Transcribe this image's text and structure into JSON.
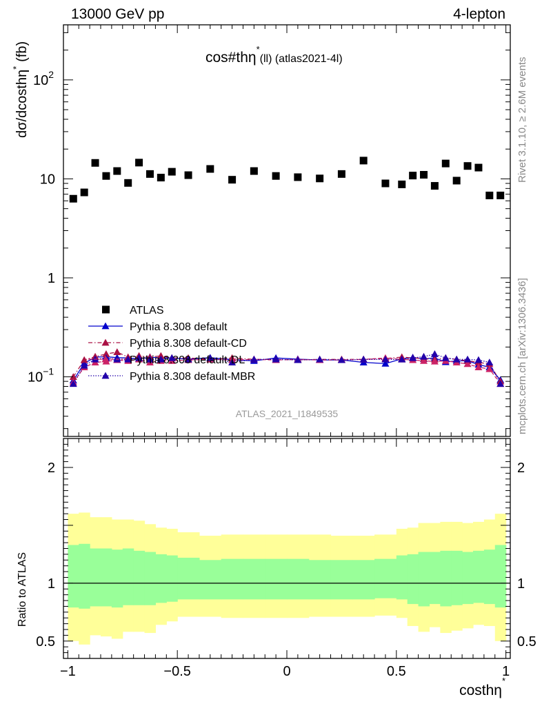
{
  "header": {
    "energy_label": "13000 GeV pp",
    "process_label": "4-lepton"
  },
  "side_labels": {
    "rivet": "Rivet 3.1.10, ≥ 2.6M events",
    "mcplots": "mcplots.cern.ch [arXiv:1306.3436]"
  },
  "chart_data": {
    "type": "scatter",
    "title": "cos#thη* (ll) (atlas2021-4l)",
    "title_main": "cos#thη",
    "title_sup": "*",
    "title_sub": "(ll) (atlas2021-4l)",
    "watermark": "ATLAS_2021_I1849535",
    "ylabel": "dσ/dcosthη* (fb)",
    "ylabel_main": "dσ/dcosthη",
    "ylabel_sup": "*",
    "ylabel_unit": "(fb)",
    "xlabel": "costhη*",
    "xlabel_main": "costhη",
    "xlabel_sup": "*",
    "ratio_ylabel": "Ratio to ATLAS",
    "xlim": [
      -1.02,
      1.02
    ],
    "ylim": [
      0.025,
      360
    ],
    "yscale": "log",
    "ratio_ylim": [
      0.35,
      2.25
    ],
    "main_ytick_labels": [
      {
        "value": 0.1,
        "base": "10",
        "exp": "−1"
      },
      {
        "value": 1,
        "base": "1",
        "exp": ""
      },
      {
        "value": 10,
        "base": "10",
        "exp": ""
      },
      {
        "value": 100,
        "base": "10",
        "exp": "2"
      }
    ],
    "ratio_ytick_labels": [
      {
        "value": 0.5,
        "label": "0.5"
      },
      {
        "value": 1,
        "label": "1"
      },
      {
        "value": 2,
        "label": "2"
      }
    ],
    "xtick_labels": [
      {
        "value": -1,
        "label": "−1"
      },
      {
        "value": -0.5,
        "label": "−0.5"
      },
      {
        "value": 0,
        "label": "0"
      },
      {
        "value": 0.5,
        "label": "0.5"
      },
      {
        "value": 1,
        "label": "1"
      }
    ],
    "bin_edges": [
      -1.0,
      -0.95,
      -0.9,
      -0.85,
      -0.8,
      -0.75,
      -0.7,
      -0.65,
      -0.6,
      -0.55,
      -0.5,
      -0.4,
      -0.3,
      -0.2,
      -0.1,
      0.0,
      0.1,
      0.2,
      0.3,
      0.4,
      0.5,
      0.55,
      0.6,
      0.65,
      0.7,
      0.75,
      0.8,
      0.85,
      0.9,
      0.95,
      1.0
    ],
    "legend": {
      "placement": "middle-left",
      "entries": [
        {
          "label": "ATLAS",
          "color": "#000000",
          "marker": "square",
          "line": "none"
        },
        {
          "label": "Pythia 8.308 default",
          "color": "#0000cc",
          "marker": "triangle",
          "line": "solid"
        },
        {
          "label": "Pythia 8.308 default-CD",
          "color": "#aa1144",
          "marker": "triangle",
          "line": "dashdot"
        },
        {
          "label": "Pythia 8.308 default-DL",
          "color": "#cc2266",
          "marker": "triangle",
          "line": "dashed"
        },
        {
          "label": "Pythia 8.308 default-MBR",
          "color": "#2200aa",
          "marker": "triangle",
          "line": "dotted"
        }
      ]
    },
    "series": [
      {
        "name": "ATLAS",
        "color": "#000000",
        "values": [
          6.3,
          7.3,
          14.5,
          10.7,
          12.0,
          9.1,
          14.6,
          11.2,
          10.3,
          11.8,
          10.9,
          12.6,
          9.8,
          12.0,
          10.7,
          10.4,
          10.1,
          11.2,
          15.3,
          9.0,
          8.8,
          10.8,
          11.0,
          8.5,
          14.3,
          9.6,
          13.5,
          13.0,
          6.8,
          6.8
        ]
      },
      {
        "name": "Pythia 8.308 default",
        "color": "#0000cc",
        "values": [
          0.092,
          0.137,
          0.158,
          0.16,
          0.156,
          0.155,
          0.152,
          0.158,
          0.155,
          0.155,
          0.151,
          0.156,
          0.149,
          0.145,
          0.155,
          0.151,
          0.148,
          0.148,
          0.14,
          0.136,
          0.152,
          0.157,
          0.152,
          0.155,
          0.141,
          0.145,
          0.145,
          0.133,
          0.125,
          0.093
        ]
      },
      {
        "name": "Pythia 8.308 default-CD",
        "color": "#aa1144",
        "values": [
          0.1,
          0.148,
          0.16,
          0.17,
          0.178,
          0.158,
          0.163,
          0.158,
          0.163,
          0.155,
          0.155,
          0.15,
          0.155,
          0.15,
          0.15,
          0.148,
          0.15,
          0.15,
          0.15,
          0.153,
          0.158,
          0.155,
          0.153,
          0.15,
          0.155,
          0.15,
          0.145,
          0.14,
          0.135,
          0.09
        ]
      },
      {
        "name": "Pythia 8.308 default-DL",
        "color": "#cc2266",
        "values": [
          0.088,
          0.125,
          0.14,
          0.143,
          0.148,
          0.145,
          0.15,
          0.14,
          0.145,
          0.145,
          0.148,
          0.15,
          0.148,
          0.15,
          0.148,
          0.15,
          0.148,
          0.148,
          0.15,
          0.155,
          0.15,
          0.148,
          0.145,
          0.143,
          0.145,
          0.14,
          0.135,
          0.125,
          0.12,
          0.085
        ]
      },
      {
        "name": "Pythia 8.308 default-MBR",
        "color": "#2200aa",
        "values": [
          0.085,
          0.13,
          0.15,
          0.155,
          0.15,
          0.15,
          0.155,
          0.15,
          0.15,
          0.155,
          0.15,
          0.155,
          0.14,
          0.15,
          0.15,
          0.148,
          0.15,
          0.148,
          0.15,
          0.15,
          0.15,
          0.155,
          0.16,
          0.17,
          0.155,
          0.15,
          0.15,
          0.148,
          0.14,
          0.085
        ]
      }
    ],
    "ratio_band_outer": {
      "color": "#ffff99",
      "lo": [
        0.5,
        0.47,
        0.55,
        0.54,
        0.52,
        0.58,
        0.58,
        0.57,
        0.64,
        0.67,
        0.71,
        0.71,
        0.7,
        0.7,
        0.7,
        0.7,
        0.71,
        0.71,
        0.71,
        0.72,
        0.7,
        0.63,
        0.58,
        0.62,
        0.57,
        0.59,
        0.61,
        0.64,
        0.63,
        0.5
      ],
      "hi": [
        1.6,
        1.61,
        1.57,
        1.57,
        1.55,
        1.55,
        1.54,
        1.51,
        1.48,
        1.47,
        1.44,
        1.41,
        1.42,
        1.42,
        1.42,
        1.42,
        1.42,
        1.41,
        1.41,
        1.42,
        1.47,
        1.48,
        1.52,
        1.52,
        1.53,
        1.53,
        1.52,
        1.53,
        1.55,
        1.6
      ]
    },
    "ratio_band_inner": {
      "color": "#99ff99",
      "lo": [
        0.79,
        0.78,
        0.8,
        0.8,
        0.79,
        0.81,
        0.81,
        0.81,
        0.83,
        0.84,
        0.86,
        0.86,
        0.86,
        0.86,
        0.86,
        0.86,
        0.86,
        0.86,
        0.86,
        0.87,
        0.86,
        0.82,
        0.8,
        0.82,
        0.8,
        0.81,
        0.82,
        0.83,
        0.82,
        0.79
      ],
      "hi": [
        1.33,
        1.34,
        1.3,
        1.3,
        1.29,
        1.3,
        1.28,
        1.27,
        1.25,
        1.24,
        1.22,
        1.2,
        1.21,
        1.21,
        1.21,
        1.21,
        1.2,
        1.2,
        1.2,
        1.21,
        1.24,
        1.25,
        1.27,
        1.27,
        1.28,
        1.28,
        1.27,
        1.28,
        1.29,
        1.33
      ]
    }
  }
}
